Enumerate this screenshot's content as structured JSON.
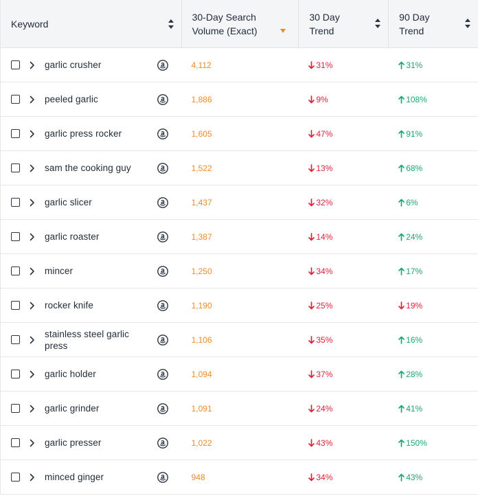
{
  "header": {
    "keyword": "Keyword",
    "volume_line1": "30-Day Search",
    "volume_line2": "Volume (Exact)",
    "trend30_line1": "30 Day",
    "trend30_line2": "Trend",
    "trend90_line1": "90 Day",
    "trend90_line2": "Trend"
  },
  "colors": {
    "volume": "#f08a24",
    "down": "#e0203a",
    "up": "#18a870",
    "active_sort": "#f08a24"
  },
  "rows": [
    {
      "keyword": "garlic crusher",
      "volume": "4,112",
      "t30": "31%",
      "t30_dir": "down",
      "t90": "31%",
      "t90_dir": "up"
    },
    {
      "keyword": "peeled garlic",
      "volume": "1,886",
      "t30": "9%",
      "t30_dir": "down",
      "t90": "108%",
      "t90_dir": "up"
    },
    {
      "keyword": "garlic press rocker",
      "volume": "1,605",
      "t30": "47%",
      "t30_dir": "down",
      "t90": "91%",
      "t90_dir": "up"
    },
    {
      "keyword": "sam the cooking guy",
      "volume": "1,522",
      "t30": "13%",
      "t30_dir": "down",
      "t90": "68%",
      "t90_dir": "up"
    },
    {
      "keyword": "garlic slicer",
      "volume": "1,437",
      "t30": "32%",
      "t30_dir": "down",
      "t90": "6%",
      "t90_dir": "up"
    },
    {
      "keyword": "garlic roaster",
      "volume": "1,387",
      "t30": "14%",
      "t30_dir": "down",
      "t90": "24%",
      "t90_dir": "up"
    },
    {
      "keyword": "mincer",
      "volume": "1,250",
      "t30": "34%",
      "t30_dir": "down",
      "t90": "17%",
      "t90_dir": "up"
    },
    {
      "keyword": "rocker knife",
      "volume": "1,190",
      "t30": "25%",
      "t30_dir": "down",
      "t90": "19%",
      "t90_dir": "down"
    },
    {
      "keyword": "stainless steel garlic press",
      "volume": "1,106",
      "t30": "35%",
      "t30_dir": "down",
      "t90": "16%",
      "t90_dir": "up"
    },
    {
      "keyword": "garlic holder",
      "volume": "1,094",
      "t30": "37%",
      "t30_dir": "down",
      "t90": "28%",
      "t90_dir": "up"
    },
    {
      "keyword": "garlic grinder",
      "volume": "1,091",
      "t30": "24%",
      "t30_dir": "down",
      "t90": "41%",
      "t90_dir": "up"
    },
    {
      "keyword": "garlic presser",
      "volume": "1,022",
      "t30": "43%",
      "t30_dir": "down",
      "t90": "150%",
      "t90_dir": "up"
    },
    {
      "keyword": "minced ginger",
      "volume": "948",
      "t30": "34%",
      "t30_dir": "down",
      "t90": "43%",
      "t90_dir": "up"
    }
  ]
}
